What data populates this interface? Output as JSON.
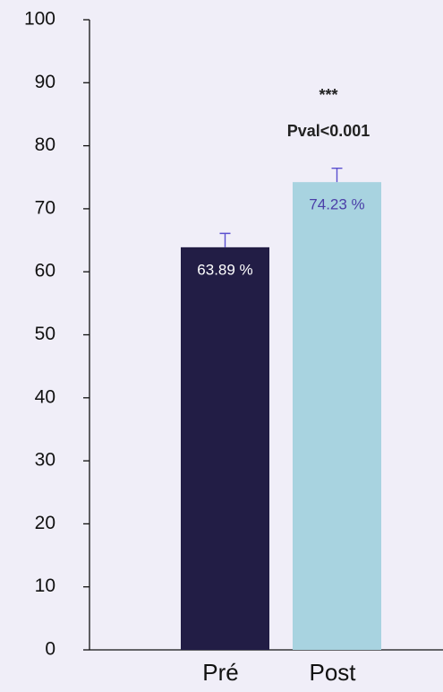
{
  "chart_data": {
    "type": "bar",
    "categories": [
      "Pré",
      "Post"
    ],
    "values": [
      63.89,
      74.23
    ],
    "value_labels": [
      "63.89 %",
      "74.23 %"
    ],
    "errors": [
      2.2,
      2.2
    ],
    "colors": [
      "#221d45",
      "#a8d3e0"
    ],
    "value_label_colors": [
      "#ffffff",
      "#4b3fa8"
    ],
    "error_color": "#5a4fcf",
    "annotations": [
      "***",
      "Pval<0.001"
    ],
    "ylim": [
      0,
      100
    ],
    "yticks": [
      0,
      10,
      20,
      30,
      40,
      50,
      60,
      70,
      80,
      90,
      100
    ],
    "grid": false
  }
}
